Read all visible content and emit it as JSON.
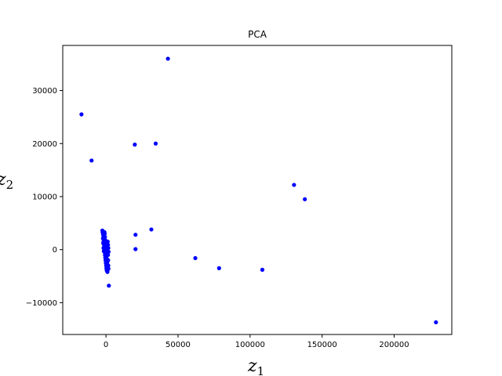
{
  "chart_data": {
    "type": "scatter",
    "title": "PCA",
    "xlabel": {
      "base": "z",
      "sub": "1"
    },
    "ylabel": {
      "base": "z",
      "sub": "2"
    },
    "xlim": [
      -30000,
      240000
    ],
    "ylim": [
      -16000,
      38500
    ],
    "xticks": [
      0,
      50000,
      100000,
      150000,
      200000
    ],
    "yticks": [
      -10000,
      0,
      10000,
      20000,
      30000
    ],
    "grid": false,
    "marker_color": "#0000ff",
    "points": [
      [
        43000,
        36000
      ],
      [
        -17000,
        25500
      ],
      [
        -10000,
        16800
      ],
      [
        20000,
        19800
      ],
      [
        34500,
        20000
      ],
      [
        130500,
        12200
      ],
      [
        138000,
        9500
      ],
      [
        31500,
        3800
      ],
      [
        20500,
        2800
      ],
      [
        20500,
        100
      ],
      [
        62000,
        -1600
      ],
      [
        78500,
        -3500
      ],
      [
        108500,
        -3800
      ],
      [
        229000,
        -13700
      ],
      [
        2000,
        -6800
      ],
      [
        -2500,
        3600
      ],
      [
        -2300,
        3200
      ],
      [
        -2000,
        2900
      ],
      [
        -1800,
        2600
      ],
      [
        -1600,
        2300
      ],
      [
        -1400,
        2000
      ],
      [
        -1200,
        1700
      ],
      [
        -1000,
        1400
      ],
      [
        -900,
        1100
      ],
      [
        -800,
        800
      ],
      [
        -700,
        500
      ],
      [
        -600,
        200
      ],
      [
        -500,
        -100
      ],
      [
        -400,
        -400
      ],
      [
        -300,
        -700
      ],
      [
        -200,
        -1000
      ],
      [
        -100,
        -1300
      ],
      [
        0,
        -1600
      ],
      [
        100,
        -1900
      ],
      [
        200,
        -2200
      ],
      [
        300,
        -2500
      ],
      [
        400,
        -2800
      ],
      [
        500,
        -3100
      ],
      [
        600,
        -3400
      ],
      [
        700,
        -3700
      ],
      [
        800,
        -4000
      ],
      [
        1000,
        -4200
      ],
      [
        1200,
        -3800
      ],
      [
        1300,
        -3300
      ],
      [
        1100,
        -2900
      ],
      [
        900,
        -2400
      ],
      [
        700,
        -1800
      ],
      [
        500,
        -1200
      ],
      [
        300,
        -600
      ],
      [
        100,
        0
      ],
      [
        -100,
        600
      ],
      [
        -300,
        1200
      ],
      [
        -500,
        1800
      ],
      [
        -700,
        2400
      ],
      [
        -900,
        3000
      ],
      [
        -1100,
        3300
      ],
      [
        1400,
        -1000
      ],
      [
        1500,
        -2000
      ],
      [
        1600,
        -3000
      ],
      [
        1700,
        -3600
      ],
      [
        -1500,
        1000
      ],
      [
        -1700,
        1500
      ],
      [
        -1300,
        500
      ],
      [
        -1100,
        0
      ],
      [
        -900,
        -500
      ],
      [
        -700,
        -1000
      ],
      [
        -500,
        -1500
      ],
      [
        -300,
        -2000
      ],
      [
        -100,
        -2500
      ],
      [
        100,
        -3000
      ],
      [
        300,
        -3500
      ],
      [
        500,
        -3900
      ],
      [
        1800,
        -400
      ],
      [
        1600,
        300
      ],
      [
        1400,
        900
      ],
      [
        1200,
        1500
      ],
      [
        -2100,
        2100
      ],
      [
        -1900,
        1200
      ],
      [
        -1700,
        300
      ],
      [
        -1500,
        -300
      ]
    ]
  }
}
